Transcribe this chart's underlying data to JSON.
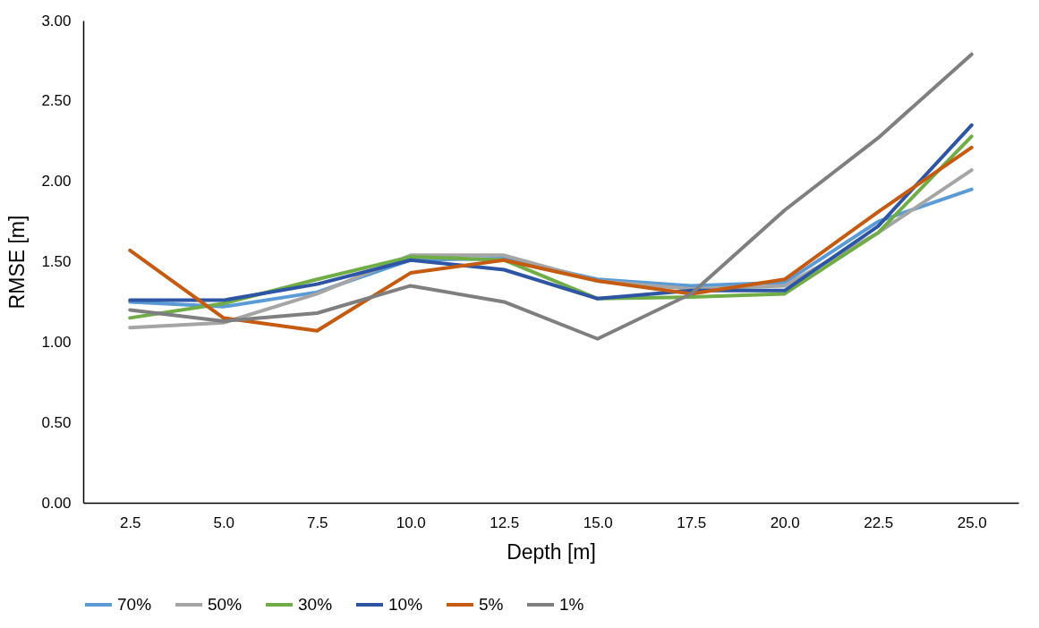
{
  "chart_data": {
    "type": "line",
    "xlabel": "Depth [m]",
    "ylabel": "RMSE [m]",
    "categories": [
      "2.5",
      "5.0",
      "7.5",
      "10.0",
      "12.5",
      "15.0",
      "17.5",
      "20.0",
      "22.5",
      "25.0"
    ],
    "ylim": [
      0,
      3
    ],
    "yticks": [
      {
        "value": 0,
        "label": "0.00"
      },
      {
        "value": 0.5,
        "label": "0.50"
      },
      {
        "value": 1,
        "label": "1.00"
      },
      {
        "value": 1.5,
        "label": "1.50"
      },
      {
        "value": 2,
        "label": "2.00"
      },
      {
        "value": 2.5,
        "label": "2.50"
      },
      {
        "value": 3,
        "label": "3.00"
      }
    ],
    "grid": false,
    "legend": "bottom",
    "marker": "none",
    "line_style": "solid",
    "series": [
      {
        "name": "70%",
        "color": "#5b9bd5",
        "values": [
          1.25,
          1.22,
          1.31,
          1.51,
          1.52,
          1.39,
          1.35,
          1.37,
          1.75,
          1.95
        ]
      },
      {
        "name": "50%",
        "color": "#a5a5a5",
        "values": [
          1.09,
          1.12,
          1.3,
          1.54,
          1.54,
          1.38,
          1.33,
          1.35,
          1.68,
          2.07
        ]
      },
      {
        "name": "30%",
        "color": "#70ad47",
        "values": [
          1.15,
          1.24,
          1.39,
          1.53,
          1.51,
          1.27,
          1.28,
          1.3,
          1.68,
          2.28
        ]
      },
      {
        "name": "10%",
        "color": "#2e55a3",
        "values": [
          1.26,
          1.26,
          1.36,
          1.51,
          1.45,
          1.27,
          1.32,
          1.32,
          1.72,
          2.35
        ]
      },
      {
        "name": "5%",
        "color": "#c55a11",
        "values": [
          1.57,
          1.15,
          1.07,
          1.43,
          1.51,
          1.38,
          1.3,
          1.39,
          1.81,
          2.21
        ]
      },
      {
        "name": "1%",
        "color": "#7f7f7f",
        "values": [
          1.2,
          1.13,
          1.18,
          1.35,
          1.25,
          1.02,
          1.3,
          1.82,
          2.27,
          2.79
        ]
      }
    ]
  }
}
